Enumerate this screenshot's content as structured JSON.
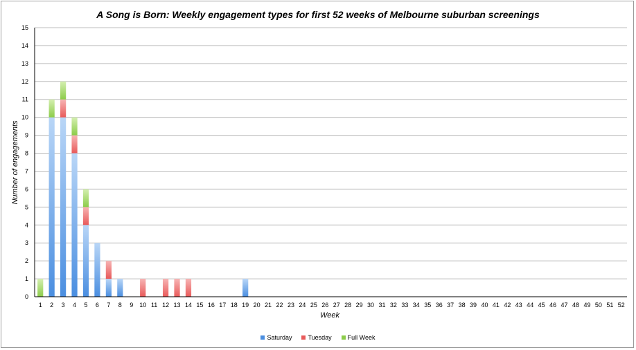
{
  "chart_data": {
    "type": "bar",
    "stacked": true,
    "title": "A Song is Born: Weekly engagement types for first 52 weeks of Melbourne suburban screenings",
    "xlabel": "Week",
    "ylabel": "Number of engagements",
    "ylim": [
      0,
      15
    ],
    "grid": true,
    "legend_position": "bottom",
    "categories": [
      "1",
      "2",
      "3",
      "4",
      "5",
      "6",
      "7",
      "8",
      "9",
      "10",
      "11",
      "12",
      "13",
      "14",
      "15",
      "16",
      "17",
      "18",
      "19",
      "20",
      "21",
      "22",
      "23",
      "24",
      "25",
      "26",
      "27",
      "28",
      "29",
      "30",
      "31",
      "32",
      "33",
      "34",
      "35",
      "36",
      "37",
      "38",
      "39",
      "40",
      "41",
      "42",
      "43",
      "44",
      "45",
      "46",
      "47",
      "48",
      "49",
      "50",
      "51",
      "52"
    ],
    "y_ticks": [
      "0",
      "1",
      "2",
      "3",
      "4",
      "5",
      "6",
      "7",
      "8",
      "9",
      "10",
      "11",
      "12",
      "13",
      "14",
      "15"
    ],
    "series": [
      {
        "name": "Saturday",
        "color": "#4a8ee0",
        "values": [
          0,
          10,
          10,
          8,
          4,
          3,
          1,
          1,
          0,
          0,
          0,
          0,
          0,
          0,
          0,
          0,
          0,
          0,
          1,
          0,
          0,
          0,
          0,
          0,
          0,
          0,
          0,
          0,
          0,
          0,
          0,
          0,
          0,
          0,
          0,
          0,
          0,
          0,
          0,
          0,
          0,
          0,
          0,
          0,
          0,
          0,
          0,
          0,
          0,
          0,
          0,
          0
        ]
      },
      {
        "name": "Tuesday",
        "color": "#e85a5a",
        "values": [
          0,
          0,
          1,
          1,
          1,
          0,
          1,
          0,
          0,
          1,
          0,
          1,
          1,
          1,
          0,
          0,
          0,
          0,
          0,
          0,
          0,
          0,
          0,
          0,
          0,
          0,
          0,
          0,
          0,
          0,
          0,
          0,
          0,
          0,
          0,
          0,
          0,
          0,
          0,
          0,
          0,
          0,
          0,
          0,
          0,
          0,
          0,
          0,
          0,
          0,
          0,
          0
        ]
      },
      {
        "name": "Full Week",
        "color": "#8ccc4a",
        "values": [
          1,
          1,
          1,
          1,
          1,
          0,
          0,
          0,
          0,
          0,
          0,
          0,
          0,
          0,
          0,
          0,
          0,
          0,
          0,
          0,
          0,
          0,
          0,
          0,
          0,
          0,
          0,
          0,
          0,
          0,
          0,
          0,
          0,
          0,
          0,
          0,
          0,
          0,
          0,
          0,
          0,
          0,
          0,
          0,
          0,
          0,
          0,
          0,
          0,
          0,
          0,
          0
        ]
      }
    ]
  }
}
